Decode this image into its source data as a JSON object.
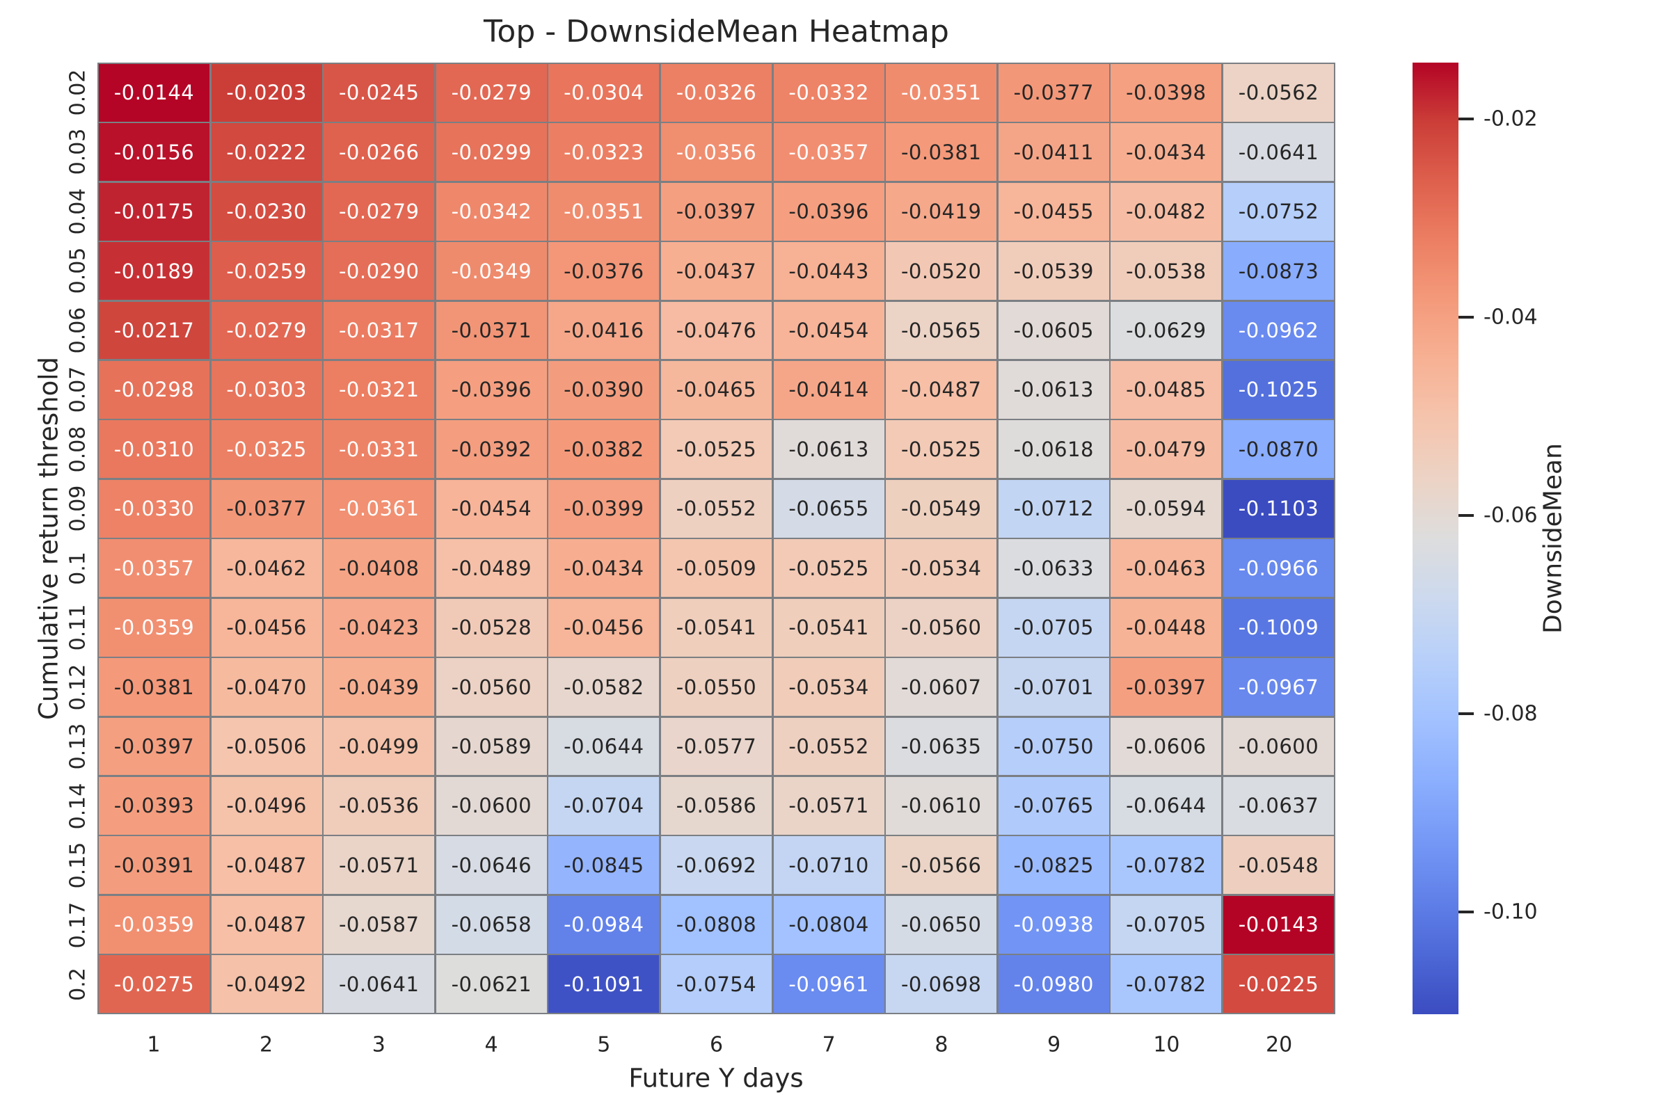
{
  "title": "Top - DownsideMean Heatmap",
  "chart_data": {
    "type": "heatmap",
    "title": "Top - DownsideMean Heatmap",
    "xlabel": "Future Y days",
    "ylabel": "Cumulative return threshold",
    "x_categories": [
      "1",
      "2",
      "3",
      "4",
      "5",
      "6",
      "7",
      "8",
      "9",
      "10",
      "20"
    ],
    "y_categories": [
      "0.02",
      "0.03",
      "0.04",
      "0.05",
      "0.06",
      "0.07",
      "0.08",
      "0.09",
      "0.1",
      "0.11",
      "0.12",
      "0.13",
      "0.14",
      "0.15",
      "0.17",
      "0.2"
    ],
    "values": [
      [
        -0.0144,
        -0.0203,
        -0.0245,
        -0.0279,
        -0.0304,
        -0.0326,
        -0.0332,
        -0.0351,
        -0.0377,
        -0.0398,
        -0.0562
      ],
      [
        -0.0156,
        -0.0222,
        -0.0266,
        -0.0299,
        -0.0323,
        -0.0356,
        -0.0357,
        -0.0381,
        -0.0411,
        -0.0434,
        -0.0641
      ],
      [
        -0.0175,
        -0.023,
        -0.0279,
        -0.0342,
        -0.0351,
        -0.0397,
        -0.0396,
        -0.0419,
        -0.0455,
        -0.0482,
        -0.0752
      ],
      [
        -0.0189,
        -0.0259,
        -0.029,
        -0.0349,
        -0.0376,
        -0.0437,
        -0.0443,
        -0.052,
        -0.0539,
        -0.0538,
        -0.0873
      ],
      [
        -0.0217,
        -0.0279,
        -0.0317,
        -0.0371,
        -0.0416,
        -0.0476,
        -0.0454,
        -0.0565,
        -0.0605,
        -0.0629,
        -0.0962
      ],
      [
        -0.0298,
        -0.0303,
        -0.0321,
        -0.0396,
        -0.039,
        -0.0465,
        -0.0414,
        -0.0487,
        -0.0613,
        -0.0485,
        -0.1025
      ],
      [
        -0.031,
        -0.0325,
        -0.0331,
        -0.0392,
        -0.0382,
        -0.0525,
        -0.0613,
        -0.0525,
        -0.0618,
        -0.0479,
        -0.087
      ],
      [
        -0.033,
        -0.0377,
        -0.0361,
        -0.0454,
        -0.0399,
        -0.0552,
        -0.0655,
        -0.0549,
        -0.0712,
        -0.0594,
        -0.1103
      ],
      [
        -0.0357,
        -0.0462,
        -0.0408,
        -0.0489,
        -0.0434,
        -0.0509,
        -0.0525,
        -0.0534,
        -0.0633,
        -0.0463,
        -0.0966
      ],
      [
        -0.0359,
        -0.0456,
        -0.0423,
        -0.0528,
        -0.0456,
        -0.0541,
        -0.0541,
        -0.056,
        -0.0705,
        -0.0448,
        -0.1009
      ],
      [
        -0.0381,
        -0.047,
        -0.0439,
        -0.056,
        -0.0582,
        -0.055,
        -0.0534,
        -0.0607,
        -0.0701,
        -0.0397,
        -0.0967
      ],
      [
        -0.0397,
        -0.0506,
        -0.0499,
        -0.0589,
        -0.0644,
        -0.0577,
        -0.0552,
        -0.0635,
        -0.075,
        -0.0606,
        -0.06
      ],
      [
        -0.0393,
        -0.0496,
        -0.0536,
        -0.06,
        -0.0704,
        -0.0586,
        -0.0571,
        -0.061,
        -0.0765,
        -0.0644,
        -0.0637
      ],
      [
        -0.0391,
        -0.0487,
        -0.0571,
        -0.0646,
        -0.0845,
        -0.0692,
        -0.071,
        -0.0566,
        -0.0825,
        -0.0782,
        -0.0548
      ],
      [
        -0.0359,
        -0.0487,
        -0.0587,
        -0.0658,
        -0.0984,
        -0.0808,
        -0.0804,
        -0.065,
        -0.0938,
        -0.0705,
        -0.0143
      ],
      [
        -0.0275,
        -0.0492,
        -0.0641,
        -0.0621,
        -0.1091,
        -0.0754,
        -0.0961,
        -0.0698,
        -0.098,
        -0.0782,
        -0.0225
      ]
    ],
    "value_decimals": 4,
    "vmin": -0.1103,
    "vmax": -0.0143,
    "colormap": "coolwarm",
    "grid_on": false,
    "colors": {
      "grid_line": "#7b7f83",
      "annot_dark_text": "#262626",
      "annot_light_text": "#ffffff",
      "background": "#ffffff",
      "min_color": "#3b4cc0",
      "mid_color": "#dddddd",
      "max_color": "#b40426"
    },
    "colorbar": {
      "label": "DownsideMean",
      "position": "right",
      "tick_labels": [
        "-0.02",
        "-0.04",
        "-0.06",
        "-0.08",
        "-0.10"
      ],
      "tick_values": [
        -0.02,
        -0.04,
        -0.06,
        -0.08,
        -0.1
      ]
    }
  }
}
